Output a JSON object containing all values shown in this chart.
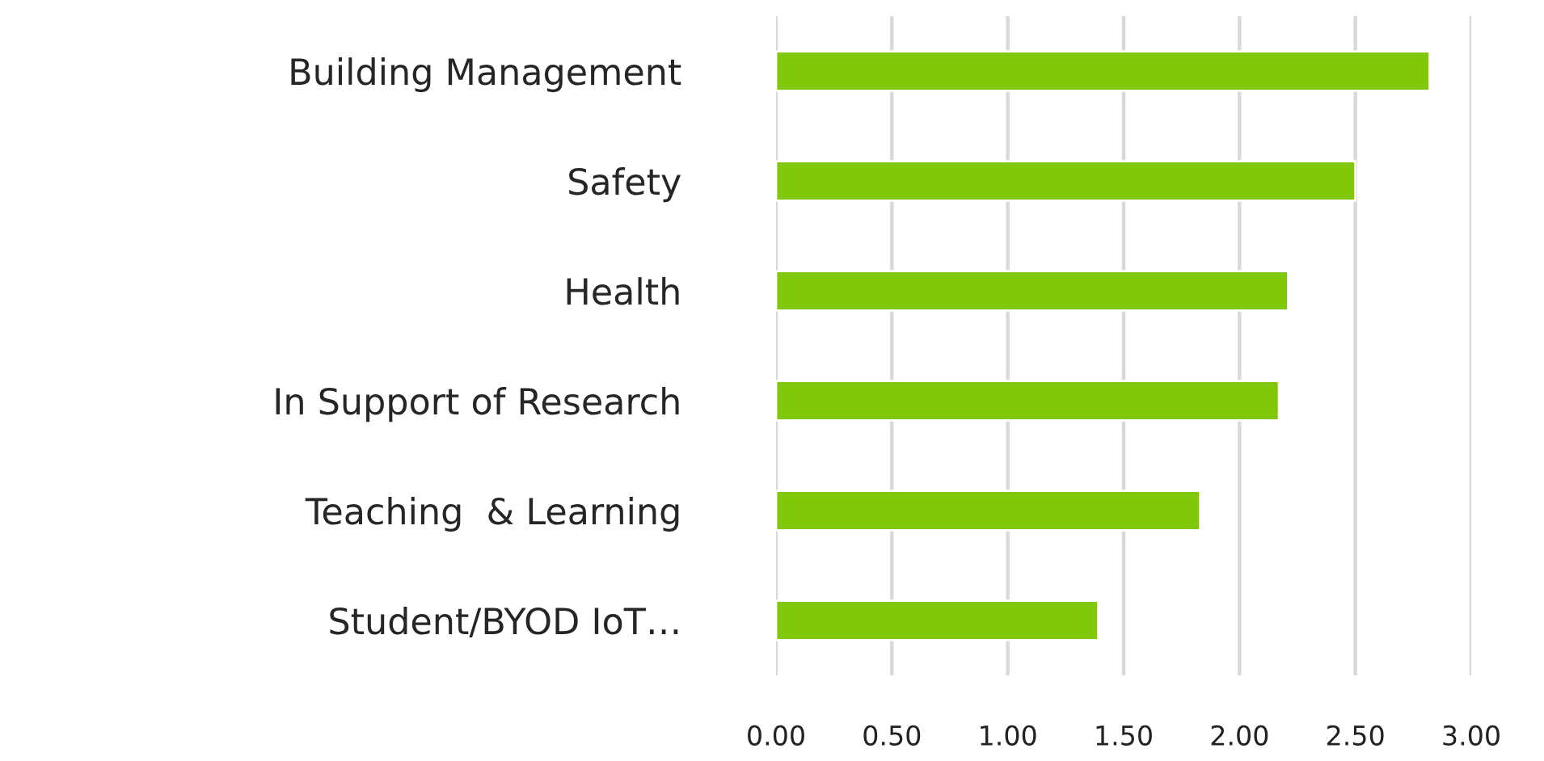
{
  "chart_data": {
    "type": "bar",
    "orientation": "horizontal",
    "categories": [
      "Building Management",
      "Safety",
      "Health",
      "In Support of Research",
      "Teaching  & Learning",
      "Student/BYOD IoT…"
    ],
    "values": [
      2.82,
      2.5,
      2.21,
      2.17,
      1.83,
      1.39
    ],
    "color": "#81c80a",
    "xlim": [
      0,
      3
    ],
    "xticks": [
      {
        "value": 0,
        "label": "0.00"
      },
      {
        "value": 0.5,
        "label": "0.50"
      },
      {
        "value": 1,
        "label": "1.00"
      },
      {
        "value": 1.5,
        "label": "1.50"
      },
      {
        "value": 2,
        "label": "2.00"
      },
      {
        "value": 2.5,
        "label": "2.50"
      },
      {
        "value": 3,
        "label": "3.00"
      }
    ],
    "grid": "x",
    "legend": false
  }
}
